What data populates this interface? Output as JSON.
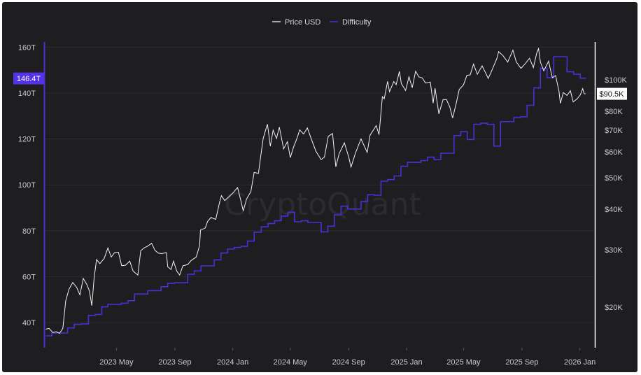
{
  "chart_data": {
    "type": "line",
    "watermark": "CryptoQuant",
    "legend": {
      "placement": "top-center",
      "items": [
        "Price USD",
        "Difficulty"
      ]
    },
    "colors": {
      "background": "#1e1e21",
      "price": "#ffffff",
      "difficulty": "#4b2fd6",
      "axis_label": "#c9c9cf",
      "grid": "#2a2a30",
      "badge_left": "#5433e6"
    },
    "x_axis": {
      "type": "date",
      "range": [
        "2022-12-01",
        "2026-01-31"
      ],
      "ticks": [
        {
          "date": "2023-05-01",
          "label": "2023 May"
        },
        {
          "date": "2023-09-01",
          "label": "2023 Sep"
        },
        {
          "date": "2024-01-01",
          "label": "2024 Jan"
        },
        {
          "date": "2024-05-01",
          "label": "2024 May"
        },
        {
          "date": "2024-09-01",
          "label": "2024 Sep"
        },
        {
          "date": "2025-01-01",
          "label": "2025 Jan"
        },
        {
          "date": "2025-05-01",
          "label": "2025 May"
        },
        {
          "date": "2025-09-01",
          "label": "2025 Sep"
        },
        {
          "date": "2026-01-01",
          "label": "2026 Jan"
        }
      ]
    },
    "y_left": {
      "name": "Difficulty",
      "scale": "linear",
      "range": [
        29,
        162
      ],
      "unit_suffix": "T",
      "ticks": [
        {
          "value": 40,
          "label": "40T"
        },
        {
          "value": 60,
          "label": "60T"
        },
        {
          "value": 80,
          "label": "80T"
        },
        {
          "value": 100,
          "label": "100T"
        },
        {
          "value": 120,
          "label": "120T"
        },
        {
          "value": 140,
          "label": "140T"
        },
        {
          "value": 160,
          "label": "160T"
        }
      ],
      "current_label": "146.4T",
      "current_value": 146.4
    },
    "y_right": {
      "name": "Price USD",
      "scale": "log",
      "range": [
        15000,
        130000
      ],
      "ticks": [
        {
          "value": 20000,
          "label": "$20K"
        },
        {
          "value": 30000,
          "label": "$30K"
        },
        {
          "value": 40000,
          "label": "$40K"
        },
        {
          "value": 50000,
          "label": "$50K"
        },
        {
          "value": 60000,
          "label": "$60K"
        },
        {
          "value": 70000,
          "label": "$70K"
        },
        {
          "value": 80000,
          "label": "$80K"
        },
        {
          "value": 100000,
          "label": "$100K"
        }
      ],
      "current_label": "$90.5K",
      "current_value": 90500
    },
    "series": [
      {
        "name": "Difficulty",
        "style": "step",
        "points": [
          [
            "2022-12-03",
            34.2
          ],
          [
            "2022-12-16",
            35.4
          ],
          [
            "2023-01-03",
            35.4
          ],
          [
            "2023-01-18",
            37.6
          ],
          [
            "2023-02-01",
            39.2
          ],
          [
            "2023-02-16",
            39.4
          ],
          [
            "2023-03-03",
            43.1
          ],
          [
            "2023-03-17",
            43.5
          ],
          [
            "2023-03-31",
            46.8
          ],
          [
            "2023-04-13",
            47.9
          ],
          [
            "2023-05-01",
            47.9
          ],
          [
            "2023-05-11",
            48.4
          ],
          [
            "2023-05-25",
            49.5
          ],
          [
            "2023-06-08",
            52.4
          ],
          [
            "2023-06-22",
            52.4
          ],
          [
            "2023-07-06",
            53.9
          ],
          [
            "2023-07-20",
            53.9
          ],
          [
            "2023-08-03",
            55.6
          ],
          [
            "2023-08-17",
            57.1
          ],
          [
            "2023-08-31",
            57.3
          ],
          [
            "2023-09-14",
            57.3
          ],
          [
            "2023-09-28",
            61.0
          ],
          [
            "2023-10-12",
            62.5
          ],
          [
            "2023-10-26",
            64.7
          ],
          [
            "2023-11-09",
            64.7
          ],
          [
            "2023-11-23",
            67.3
          ],
          [
            "2023-12-07",
            70.3
          ],
          [
            "2023-12-21",
            72.0
          ],
          [
            "2024-01-04",
            72.7
          ],
          [
            "2024-01-18",
            73.2
          ],
          [
            "2024-02-01",
            75.5
          ],
          [
            "2024-02-15",
            79.4
          ],
          [
            "2024-03-01",
            81.7
          ],
          [
            "2024-03-15",
            83.1
          ],
          [
            "2024-03-29",
            84.4
          ],
          [
            "2024-04-12",
            86.4
          ],
          [
            "2024-04-26",
            88.1
          ],
          [
            "2024-05-10",
            83.9
          ],
          [
            "2024-05-24",
            84.4
          ],
          [
            "2024-06-07",
            83.6
          ],
          [
            "2024-06-21",
            83.6
          ],
          [
            "2024-07-05",
            79.5
          ],
          [
            "2024-07-19",
            82.0
          ],
          [
            "2024-08-02",
            86.9
          ],
          [
            "2024-08-16",
            90.7
          ],
          [
            "2024-08-30",
            89.5
          ],
          [
            "2024-09-13",
            89.5
          ],
          [
            "2024-09-27",
            92.7
          ],
          [
            "2024-10-11",
            95.7
          ],
          [
            "2024-10-25",
            95.5
          ],
          [
            "2024-11-08",
            101.6
          ],
          [
            "2024-11-22",
            102.3
          ],
          [
            "2024-12-06",
            103.9
          ],
          [
            "2024-12-20",
            108.1
          ],
          [
            "2025-01-03",
            109.8
          ],
          [
            "2025-01-17",
            109.8
          ],
          [
            "2025-01-31",
            110.6
          ],
          [
            "2025-02-14",
            112.1
          ],
          [
            "2025-02-28",
            111.0
          ],
          [
            "2025-03-14",
            113.8
          ],
          [
            "2025-03-28",
            113.8
          ],
          [
            "2025-04-11",
            121.5
          ],
          [
            "2025-04-25",
            123.2
          ],
          [
            "2025-05-09",
            119.8
          ],
          [
            "2025-05-23",
            126.4
          ],
          [
            "2025-06-06",
            126.9
          ],
          [
            "2025-06-20",
            126.4
          ],
          [
            "2025-07-04",
            116.9
          ],
          [
            "2025-07-18",
            127.6
          ],
          [
            "2025-08-01",
            127.6
          ],
          [
            "2025-08-15",
            129.4
          ],
          [
            "2025-08-29",
            129.7
          ],
          [
            "2025-09-12",
            134.7
          ],
          [
            "2025-09-26",
            142.3
          ],
          [
            "2025-10-10",
            150.8
          ],
          [
            "2025-10-24",
            146.7
          ],
          [
            "2025-11-07",
            155.9
          ],
          [
            "2025-11-21",
            155.9
          ],
          [
            "2025-12-05",
            149.3
          ],
          [
            "2025-12-19",
            148.2
          ],
          [
            "2026-01-02",
            146.5
          ],
          [
            "2026-01-13",
            146.4
          ]
        ]
      },
      {
        "name": "Price USD",
        "style": "line",
        "points": [
          [
            "2022-12-03",
            17100
          ],
          [
            "2022-12-10",
            17200
          ],
          [
            "2022-12-18",
            16700
          ],
          [
            "2022-12-25",
            16800
          ],
          [
            "2023-01-01",
            16600
          ],
          [
            "2023-01-08",
            17200
          ],
          [
            "2023-01-14",
            20900
          ],
          [
            "2023-01-21",
            22700
          ],
          [
            "2023-01-29",
            23800
          ],
          [
            "2023-02-06",
            23000
          ],
          [
            "2023-02-13",
            21800
          ],
          [
            "2023-02-20",
            24500
          ],
          [
            "2023-02-28",
            23400
          ],
          [
            "2023-03-05",
            22400
          ],
          [
            "2023-03-10",
            20200
          ],
          [
            "2023-03-15",
            24700
          ],
          [
            "2023-03-20",
            28000
          ],
          [
            "2023-03-27",
            27200
          ],
          [
            "2023-04-05",
            28200
          ],
          [
            "2023-04-13",
            30400
          ],
          [
            "2023-04-20",
            28500
          ],
          [
            "2023-04-27",
            29400
          ],
          [
            "2023-05-05",
            29500
          ],
          [
            "2023-05-12",
            26800
          ],
          [
            "2023-05-20",
            26900
          ],
          [
            "2023-05-29",
            27700
          ],
          [
            "2023-06-05",
            25800
          ],
          [
            "2023-06-15",
            25100
          ],
          [
            "2023-06-21",
            29800
          ],
          [
            "2023-06-28",
            30400
          ],
          [
            "2023-07-06",
            30800
          ],
          [
            "2023-07-14",
            31400
          ],
          [
            "2023-07-21",
            29900
          ],
          [
            "2023-07-28",
            29300
          ],
          [
            "2023-08-04",
            29200
          ],
          [
            "2023-08-14",
            29400
          ],
          [
            "2023-08-17",
            26600
          ],
          [
            "2023-08-24",
            26100
          ],
          [
            "2023-08-29",
            27700
          ],
          [
            "2023-09-05",
            25800
          ],
          [
            "2023-09-11",
            25100
          ],
          [
            "2023-09-18",
            26800
          ],
          [
            "2023-09-28",
            27000
          ],
          [
            "2023-10-05",
            27800
          ],
          [
            "2023-10-16",
            28500
          ],
          [
            "2023-10-23",
            30900
          ],
          [
            "2023-10-25",
            34500
          ],
          [
            "2023-11-04",
            35000
          ],
          [
            "2023-11-09",
            36700
          ],
          [
            "2023-11-16",
            37700
          ],
          [
            "2023-11-26",
            37200
          ],
          [
            "2023-12-04",
            41900
          ],
          [
            "2023-12-08",
            44000
          ],
          [
            "2023-12-15",
            42500
          ],
          [
            "2023-12-24",
            43700
          ],
          [
            "2024-01-02",
            45000
          ],
          [
            "2024-01-11",
            46600
          ],
          [
            "2024-01-18",
            42500
          ],
          [
            "2024-01-23",
            39500
          ],
          [
            "2024-01-30",
            43000
          ],
          [
            "2024-02-08",
            45300
          ],
          [
            "2024-02-15",
            51900
          ],
          [
            "2024-02-24",
            51500
          ],
          [
            "2024-02-28",
            57000
          ],
          [
            "2024-03-05",
            66000
          ],
          [
            "2024-03-12",
            71500
          ],
          [
            "2024-03-14",
            73000
          ],
          [
            "2024-03-20",
            62500
          ],
          [
            "2024-03-26",
            70000
          ],
          [
            "2024-04-02",
            66000
          ],
          [
            "2024-04-08",
            71500
          ],
          [
            "2024-04-17",
            61300
          ],
          [
            "2024-04-25",
            64500
          ],
          [
            "2024-05-01",
            57600
          ],
          [
            "2024-05-08",
            62100
          ],
          [
            "2024-05-15",
            66000
          ],
          [
            "2024-05-21",
            70100
          ],
          [
            "2024-05-29",
            68100
          ],
          [
            "2024-06-06",
            71100
          ],
          [
            "2024-06-14",
            66000
          ],
          [
            "2024-06-24",
            60300
          ],
          [
            "2024-07-05",
            56800
          ],
          [
            "2024-07-12",
            57800
          ],
          [
            "2024-07-20",
            67000
          ],
          [
            "2024-07-29",
            68300
          ],
          [
            "2024-08-05",
            54000
          ],
          [
            "2024-08-12",
            59300
          ],
          [
            "2024-08-23",
            64000
          ],
          [
            "2024-09-01",
            58000
          ],
          [
            "2024-09-06",
            53900
          ],
          [
            "2024-09-15",
            59300
          ],
          [
            "2024-09-27",
            65800
          ],
          [
            "2024-10-10",
            59800
          ],
          [
            "2024-10-16",
            67500
          ],
          [
            "2024-10-29",
            72300
          ],
          [
            "2024-11-04",
            67800
          ],
          [
            "2024-11-07",
            75900
          ],
          [
            "2024-11-11",
            88700
          ],
          [
            "2024-11-15",
            87400
          ],
          [
            "2024-11-22",
            98900
          ],
          [
            "2024-11-26",
            91900
          ],
          [
            "2024-12-05",
            98700
          ],
          [
            "2024-12-10",
            96600
          ],
          [
            "2024-12-17",
            106100
          ],
          [
            "2024-12-21",
            97300
          ],
          [
            "2024-12-30",
            92700
          ],
          [
            "2025-01-06",
            102100
          ],
          [
            "2025-01-13",
            94500
          ],
          [
            "2025-01-20",
            106200
          ],
          [
            "2025-01-27",
            102000
          ],
          [
            "2025-02-03",
            101300
          ],
          [
            "2025-02-10",
            97700
          ],
          [
            "2025-02-20",
            98300
          ],
          [
            "2025-02-26",
            84700
          ],
          [
            "2025-03-02",
            94200
          ],
          [
            "2025-03-10",
            78500
          ],
          [
            "2025-03-19",
            86900
          ],
          [
            "2025-03-26",
            86900
          ],
          [
            "2025-04-02",
            82500
          ],
          [
            "2025-04-08",
            76300
          ],
          [
            "2025-04-15",
            84000
          ],
          [
            "2025-04-22",
            93400
          ],
          [
            "2025-05-01",
            96500
          ],
          [
            "2025-05-08",
            103200
          ],
          [
            "2025-05-15",
            103500
          ],
          [
            "2025-05-22",
            111700
          ],
          [
            "2025-05-30",
            104000
          ],
          [
            "2025-06-09",
            110300
          ],
          [
            "2025-06-17",
            104600
          ],
          [
            "2025-06-22",
            100900
          ],
          [
            "2025-06-30",
            107100
          ],
          [
            "2025-07-10",
            116000
          ],
          [
            "2025-07-14",
            122000
          ],
          [
            "2025-07-23",
            118700
          ],
          [
            "2025-08-02",
            113300
          ],
          [
            "2025-08-13",
            123300
          ],
          [
            "2025-08-20",
            113500
          ],
          [
            "2025-08-30",
            108400
          ],
          [
            "2025-09-08",
            112100
          ],
          [
            "2025-09-17",
            116400
          ],
          [
            "2025-09-25",
            109000
          ],
          [
            "2025-10-02",
            120600
          ],
          [
            "2025-10-06",
            124700
          ],
          [
            "2025-10-10",
            113200
          ],
          [
            "2025-10-17",
            106500
          ],
          [
            "2025-10-27",
            114000
          ],
          [
            "2025-11-04",
            101500
          ],
          [
            "2025-11-11",
            103000
          ],
          [
            "2025-11-18",
            92100
          ],
          [
            "2025-11-21",
            84600
          ],
          [
            "2025-11-27",
            91300
          ],
          [
            "2025-12-05",
            89500
          ],
          [
            "2025-12-12",
            92500
          ],
          [
            "2025-12-18",
            85500
          ],
          [
            "2025-12-26",
            87300
          ],
          [
            "2026-01-02",
            89900
          ],
          [
            "2026-01-07",
            93900
          ],
          [
            "2026-01-10",
            90600
          ],
          [
            "2026-01-13",
            90500
          ]
        ]
      }
    ]
  }
}
